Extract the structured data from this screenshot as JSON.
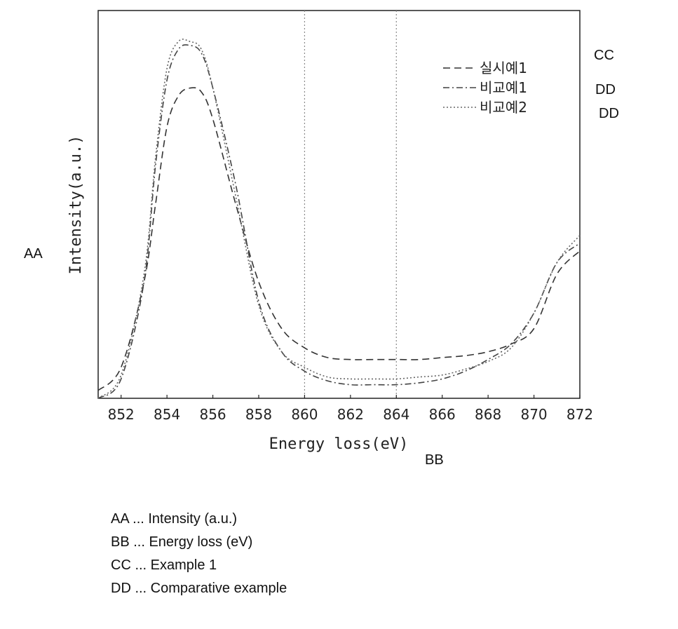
{
  "chart_data": {
    "type": "line",
    "title": "",
    "xlabel": "Energy loss(eV)",
    "ylabel": "Intensity(a.u.)",
    "xlim": [
      851,
      872
    ],
    "ylim": [
      0,
      100
    ],
    "x_ticks": [
      "852",
      "854",
      "856",
      "858",
      "860",
      "862",
      "864",
      "866",
      "868",
      "870",
      "872"
    ],
    "y_ticks": [],
    "grid": "vertical dotted lines at 860 and 864",
    "legend_position": "top-right",
    "series": [
      {
        "name": "실시예1",
        "style": "dashed",
        "points": [
          [
            851,
            2
          ],
          [
            852,
            8
          ],
          [
            853,
            30
          ],
          [
            853.5,
            50
          ],
          [
            854,
            70
          ],
          [
            854.5,
            78
          ],
          [
            855,
            80
          ],
          [
            855.5,
            79
          ],
          [
            856,
            72
          ],
          [
            857,
            50
          ],
          [
            858,
            30
          ],
          [
            859,
            18
          ],
          [
            860,
            13
          ],
          [
            861,
            10.5
          ],
          [
            862,
            10
          ],
          [
            863,
            10
          ],
          [
            864,
            10
          ],
          [
            865,
            10
          ],
          [
            866,
            10.5
          ],
          [
            867,
            11
          ],
          [
            868,
            12
          ],
          [
            869,
            14
          ],
          [
            870,
            18
          ],
          [
            871,
            32
          ],
          [
            872,
            38
          ]
        ]
      },
      {
        "name": "비교예1",
        "style": "dash-dot",
        "points": [
          [
            851,
            0
          ],
          [
            852,
            5
          ],
          [
            853,
            30
          ],
          [
            853.5,
            60
          ],
          [
            854,
            82
          ],
          [
            854.5,
            90
          ],
          [
            855,
            91
          ],
          [
            855.5,
            89
          ],
          [
            856,
            80
          ],
          [
            857,
            55
          ],
          [
            858,
            25
          ],
          [
            859,
            12
          ],
          [
            860,
            7
          ],
          [
            861,
            4.5
          ],
          [
            862,
            3.5
          ],
          [
            863,
            3.5
          ],
          [
            864,
            3.5
          ],
          [
            865,
            4
          ],
          [
            866,
            5
          ],
          [
            867,
            7
          ],
          [
            868,
            10
          ],
          [
            869,
            14
          ],
          [
            870,
            22
          ],
          [
            871,
            35
          ],
          [
            872,
            40
          ]
        ]
      },
      {
        "name": "비교예2",
        "style": "dotted",
        "points": [
          [
            851,
            0
          ],
          [
            852,
            6
          ],
          [
            853,
            32
          ],
          [
            853.5,
            62
          ],
          [
            854,
            85
          ],
          [
            854.5,
            92
          ],
          [
            855,
            92
          ],
          [
            855.5,
            90
          ],
          [
            856,
            80
          ],
          [
            857,
            52
          ],
          [
            858,
            24
          ],
          [
            859,
            12
          ],
          [
            860,
            8
          ],
          [
            861,
            5.5
          ],
          [
            862,
            5
          ],
          [
            863,
            5
          ],
          [
            864,
            5
          ],
          [
            865,
            5.5
          ],
          [
            866,
            6
          ],
          [
            867,
            7.5
          ],
          [
            868,
            9.5
          ],
          [
            869,
            13
          ],
          [
            870,
            22
          ],
          [
            871,
            35
          ],
          [
            872,
            42
          ]
        ]
      }
    ]
  },
  "annotations": {
    "callouts": [
      {
        "key": "aa",
        "text": "AA"
      },
      {
        "key": "bb",
        "text": "BB"
      },
      {
        "key": "cc",
        "text": "CC"
      },
      {
        "key": "dd1",
        "text": "DD"
      },
      {
        "key": "dd2",
        "text": "DD"
      }
    ],
    "key_list": [
      "AA ... Intensity (a.u.)",
      "BB ... Energy loss (eV)",
      "CC ... Example 1",
      "DD ... Comparative example"
    ]
  }
}
